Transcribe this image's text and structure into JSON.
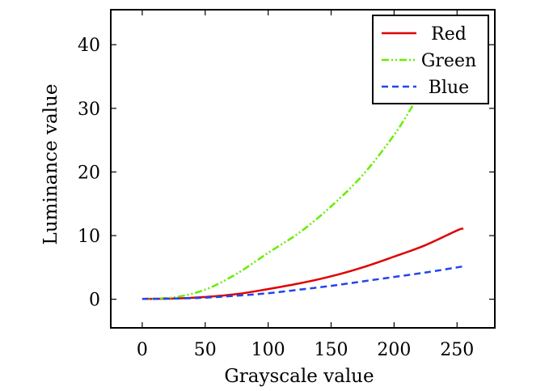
{
  "chart_data": {
    "type": "line",
    "xlabel": "Grayscale value",
    "ylabel": "Luminance value",
    "xlim": [
      -25,
      280
    ],
    "ylim": [
      -4.5,
      45.5
    ],
    "xticks": [
      0,
      50,
      100,
      150,
      200,
      250
    ],
    "yticks": [
      0,
      10,
      20,
      30,
      40
    ],
    "grid": false,
    "legend_position": "top-right",
    "series": [
      {
        "name": "Red",
        "color": "#e00000",
        "style": "solid",
        "x": [
          0,
          25,
          50,
          75,
          100,
          125,
          150,
          175,
          200,
          225,
          250,
          255
        ],
        "y": [
          0.05,
          0.1,
          0.35,
          0.8,
          1.6,
          2.5,
          3.6,
          5.0,
          6.7,
          8.5,
          10.8,
          11.1
        ]
      },
      {
        "name": "Green",
        "color": "#66ee00",
        "style": "dashdotdot",
        "x": [
          0,
          25,
          50,
          75,
          100,
          125,
          150,
          175,
          200,
          215
        ],
        "y": [
          0.05,
          0.3,
          1.5,
          4.0,
          7.3,
          10.5,
          14.6,
          19.5,
          25.8,
          30.5
        ]
      },
      {
        "name": "Blue",
        "color": "#2244ee",
        "style": "dashed",
        "x": [
          0,
          25,
          50,
          75,
          100,
          125,
          150,
          175,
          200,
          225,
          250,
          255
        ],
        "y": [
          0.05,
          0.1,
          0.25,
          0.55,
          0.95,
          1.5,
          2.1,
          2.8,
          3.5,
          4.2,
          5.0,
          5.2
        ]
      }
    ]
  }
}
